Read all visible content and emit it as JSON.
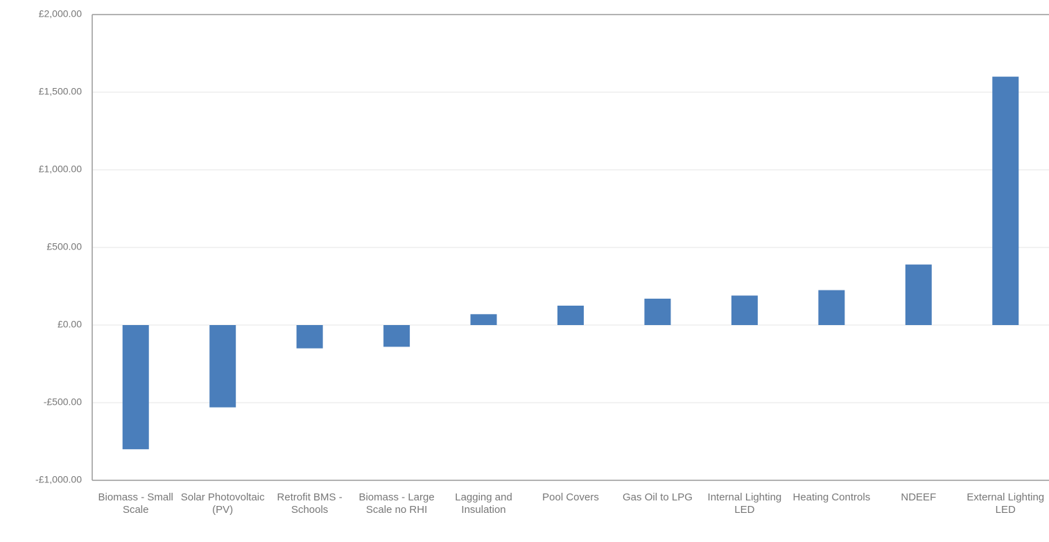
{
  "chart_data": {
    "type": "bar",
    "categories": [
      "Biomass - Small Scale",
      "Solar Photovoltaic (PV)",
      "Retrofit BMS - Schools",
      "Biomass - Large Scale no RHI",
      "Lagging and Insulation",
      "Pool Covers",
      "Gas Oil to LPG",
      "Internal Lighting LED",
      "Heating Controls",
      "NDEEF",
      "External Lighting LED"
    ],
    "values": [
      -800,
      -530,
      -150,
      -140,
      70,
      125,
      170,
      190,
      225,
      390,
      1600
    ],
    "color": "#4a7ebb",
    "ylim": [
      -1000,
      2000
    ],
    "yticks": [
      {
        "value": -1000,
        "label": "-£1,000.00"
      },
      {
        "value": -500,
        "label": "-£500.00"
      },
      {
        "value": 0,
        "label": "£0.00"
      },
      {
        "value": 500,
        "label": "£500.00"
      },
      {
        "value": 1000,
        "label": "£1,000.00"
      },
      {
        "value": 1500,
        "label": "£1,500.00"
      },
      {
        "value": 2000,
        "label": "£2,000.00"
      }
    ],
    "grid": true
  }
}
